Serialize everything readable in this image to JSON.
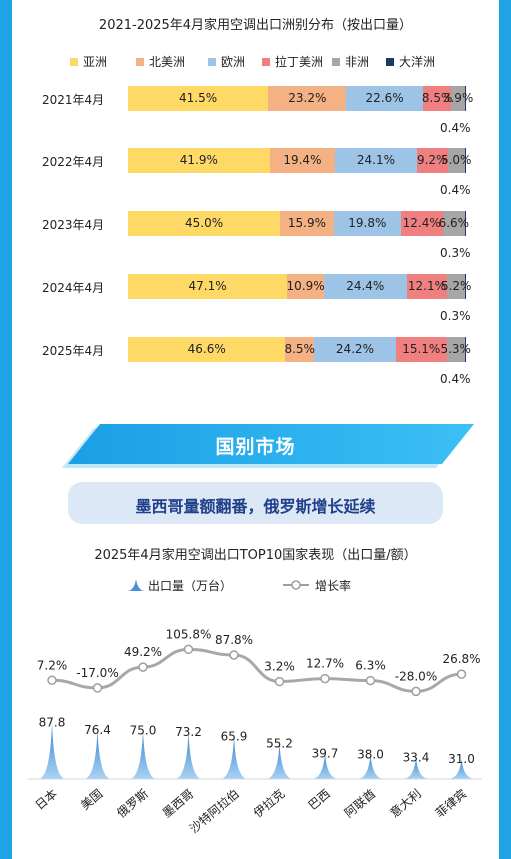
{
  "top_chart": {
    "title": "2021-2025年4月家用空调出口洲别分布（按出口量）",
    "legend": [
      "亚洲",
      "北美洲",
      "欧洲",
      "拉丁美洲",
      "非洲",
      "大洋洲"
    ],
    "colors": [
      "#ffd966",
      "#f4b183",
      "#9dc3e6",
      "#f08080",
      "#a6a6a6",
      "#1f3864"
    ]
  },
  "section": {
    "banner": "国别市场",
    "headline": "墨西哥量额翻番，俄罗斯增长延续"
  },
  "bottom_chart": {
    "title": "2025年4月家用空调出口TOP10国家表现（出口量/额）",
    "legend_volume": "出口量（万台）",
    "legend_growth": "增长率"
  },
  "chart_data": [
    {
      "type": "bar",
      "orientation": "horizontal",
      "stacked": true,
      "title": "2021-2025年4月家用空调出口洲别分布（按出口量）",
      "categories": [
        "2021年4月",
        "2022年4月",
        "2023年4月",
        "2024年4月",
        "2025年4月"
      ],
      "series": [
        {
          "name": "亚洲",
          "values": [
            41.5,
            41.9,
            45.0,
            47.1,
            46.6
          ],
          "labels": [
            "41.5%",
            "41.9%",
            "45.0%",
            "47.1%",
            "46.6%"
          ]
        },
        {
          "name": "北美洲",
          "values": [
            23.2,
            19.4,
            15.9,
            10.9,
            8.5
          ],
          "labels": [
            "23.2%",
            "19.4%",
            "15.9%",
            "10.9%",
            "8.5%"
          ]
        },
        {
          "name": "欧洲",
          "values": [
            22.6,
            24.1,
            19.8,
            24.4,
            24.2
          ],
          "labels": [
            "22.6%",
            "24.1%",
            "19.8%",
            "24.4%",
            "24.2%"
          ]
        },
        {
          "name": "拉丁美洲",
          "values": [
            8.5,
            9.2,
            12.4,
            12.1,
            15.1
          ],
          "labels": [
            "8.5%",
            "9.2%",
            "12.4%",
            "12.1%",
            "15.1%"
          ]
        },
        {
          "name": "非洲",
          "values": [
            3.9,
            5.0,
            6.6,
            5.2,
            5.3
          ],
          "labels": [
            "3.9%",
            "5.0%",
            "6.6%",
            "5.2%",
            "5.3%"
          ]
        },
        {
          "name": "大洋洲",
          "values": [
            0.4,
            0.4,
            0.3,
            0.3,
            0.4
          ],
          "labels": [
            "0.4%",
            "0.4%",
            "0.3%",
            "0.3%",
            "0.4%"
          ]
        }
      ],
      "legend_position": "top"
    },
    {
      "type": "combo",
      "title": "2025年4月家用空调出口TOP10国家表现（出口量/额）",
      "categories": [
        "日本",
        "美国",
        "俄罗斯",
        "墨西哥",
        "沙特阿拉伯",
        "伊拉克",
        "巴西",
        "阿联酋",
        "意大利",
        "菲律宾"
      ],
      "series": [
        {
          "name": "出口量（万台）",
          "type": "area-spike",
          "values": [
            87.8,
            76.4,
            75.0,
            73.2,
            65.9,
            55.2,
            39.7,
            38.0,
            33.4,
            31.0
          ],
          "labels": [
            "87.8",
            "76.4",
            "75.0",
            "73.2",
            "65.9",
            "55.2",
            "39.7",
            "38.0",
            "33.4",
            "31.0"
          ]
        },
        {
          "name": "增长率",
          "type": "line",
          "values": [
            7.2,
            -17.0,
            49.2,
            105.8,
            87.8,
            3.2,
            12.7,
            6.3,
            -28.0,
            26.8
          ],
          "labels": [
            "7.2%",
            "-17.0%",
            "49.2%",
            "105.8%",
            "87.8%",
            "3.2%",
            "12.7%",
            "6.3%",
            "-28.0%",
            "26.8%"
          ]
        }
      ],
      "legend_position": "top"
    }
  ]
}
